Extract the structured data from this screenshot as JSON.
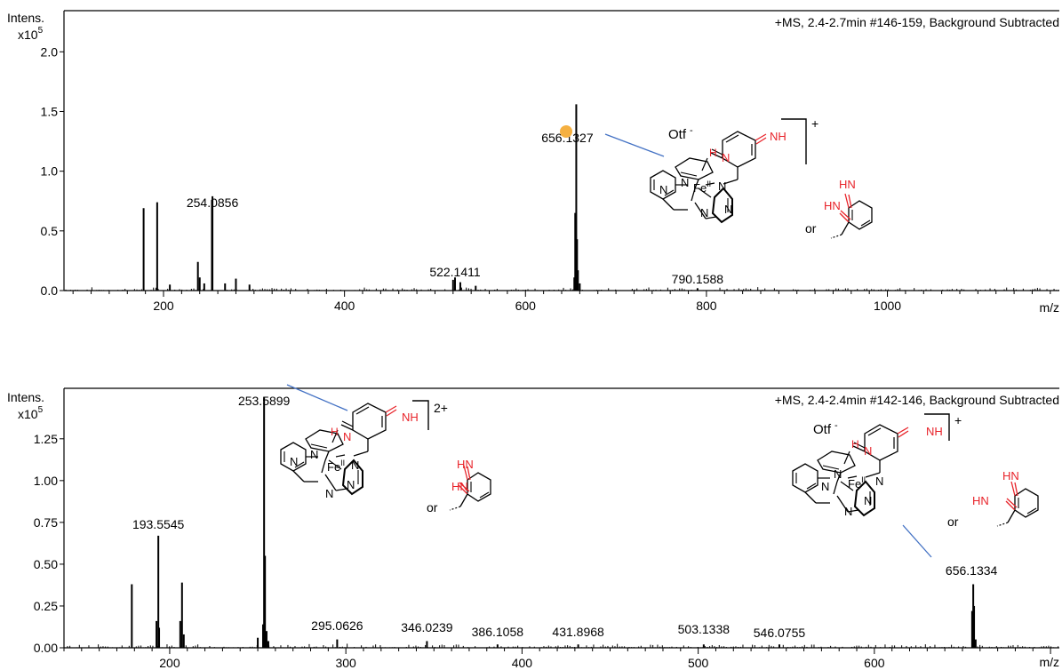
{
  "chart_data": [
    {
      "type": "bar",
      "title": "+MS, 2.4-2.7min #146-159, Background Subtracted",
      "ylabel_line1": "Intens.",
      "ylabel_line2": "x10",
      "ylabel_exp": "5",
      "xlabel": "m/z",
      "xlim": [
        90,
        1190
      ],
      "ylim": [
        0,
        2.3
      ],
      "xticks": [
        "200",
        "400",
        "600",
        "800",
        "1000"
      ],
      "yticks": [
        "0.0",
        "0.5",
        "1.0",
        "1.5",
        "2.0"
      ],
      "peaks": [
        {
          "x": 178,
          "y": 0.69
        },
        {
          "x": 193,
          "y": 0.74
        },
        {
          "x": 207,
          "y": 0.05
        },
        {
          "x": 238,
          "y": 0.24
        },
        {
          "x": 240,
          "y": 0.11
        },
        {
          "x": 245,
          "y": 0.06
        },
        {
          "x": 253.5,
          "y": 0.76
        },
        {
          "x": 254.0856,
          "y": 0.79
        },
        {
          "x": 268,
          "y": 0.06
        },
        {
          "x": 280,
          "y": 0.1
        },
        {
          "x": 295,
          "y": 0.05
        },
        {
          "x": 520,
          "y": 0.09
        },
        {
          "x": 522.1411,
          "y": 0.11
        },
        {
          "x": 528,
          "y": 0.07
        },
        {
          "x": 545,
          "y": 0.04
        },
        {
          "x": 654,
          "y": 0.11
        },
        {
          "x": 655,
          "y": 0.65
        },
        {
          "x": 656.1327,
          "y": 1.56
        },
        {
          "x": 657,
          "y": 0.43
        },
        {
          "x": 658,
          "y": 0.17
        },
        {
          "x": 660,
          "y": 0.06
        },
        {
          "x": 790.1588,
          "y": 0.02
        }
      ],
      "peak_labels": [
        {
          "text": "254.0856",
          "x": 254.0856
        },
        {
          "text": "522.1411",
          "x": 522.1411
        },
        {
          "text": "656.1327",
          "x": 656.1327
        },
        {
          "text": "790.1588",
          "x": 790.1588
        }
      ],
      "highlight_color": "#f5b041",
      "peak_color": "#000000"
    },
    {
      "type": "bar",
      "title": "+MS, 2.4-2.4min #142-146, Background Subtracted",
      "ylabel_line1": "Intens.",
      "ylabel_line2": "x10",
      "ylabel_exp": "5",
      "xlabel": "m/z",
      "xlim": [
        140,
        705
      ],
      "ylim": [
        0,
        1.52
      ],
      "xticks": [
        "200",
        "300",
        "400",
        "500",
        "600"
      ],
      "yticks": [
        "0.00",
        "0.25",
        "0.50",
        "0.75",
        "1.00",
        "1.25"
      ],
      "peaks": [
        {
          "x": 178.5,
          "y": 0.38
        },
        {
          "x": 192.5,
          "y": 0.16
        },
        {
          "x": 193.5545,
          "y": 0.67
        },
        {
          "x": 194,
          "y": 0.12
        },
        {
          "x": 206,
          "y": 0.16
        },
        {
          "x": 207,
          "y": 0.39
        },
        {
          "x": 208,
          "y": 0.08
        },
        {
          "x": 250,
          "y": 0.06
        },
        {
          "x": 253,
          "y": 0.14
        },
        {
          "x": 253.5899,
          "y": 1.5
        },
        {
          "x": 254.1,
          "y": 0.55
        },
        {
          "x": 255,
          "y": 0.1
        },
        {
          "x": 256,
          "y": 0.04
        },
        {
          "x": 295.0626,
          "y": 0.05
        },
        {
          "x": 346.0239,
          "y": 0.04
        },
        {
          "x": 386.1058,
          "y": 0.02
        },
        {
          "x": 431.8968,
          "y": 0.02
        },
        {
          "x": 503.1338,
          "y": 0.02
        },
        {
          "x": 546.0755,
          "y": 0.02
        },
        {
          "x": 655.5,
          "y": 0.22
        },
        {
          "x": 656.1334,
          "y": 0.38
        },
        {
          "x": 656.6,
          "y": 0.25
        },
        {
          "x": 657.5,
          "y": 0.05
        }
      ],
      "peak_labels": [
        {
          "text": "193.5545",
          "x": 193.5545
        },
        {
          "text": "253.5899",
          "x": 253.5899
        },
        {
          "text": "295.0626",
          "x": 295.0626
        },
        {
          "text": "346.0239",
          "x": 346.0239
        },
        {
          "text": "386.1058",
          "x": 386.1058
        },
        {
          "text": "431.8968",
          "x": 431.8968
        },
        {
          "text": "503.1338",
          "x": 503.1338
        },
        {
          "text": "546.0755",
          "x": 546.0755
        },
        {
          "text": "656.1334",
          "x": 656.1334
        }
      ],
      "peak_color": "#000000"
    }
  ],
  "structures": {
    "counterion": "Otf",
    "counterion_sup": "-",
    "charge_plus": "+",
    "charge_2plus": "2+",
    "label_NH": "NH",
    "label_HN": "HN",
    "label_H": "H",
    "label_N": "N",
    "label_Fe": "Fe",
    "label_Fe_ox": "II",
    "label_or": "or",
    "heteroatom_color": "#e8232a",
    "bond_color": "#000000",
    "leader_color": "#4472c4"
  }
}
